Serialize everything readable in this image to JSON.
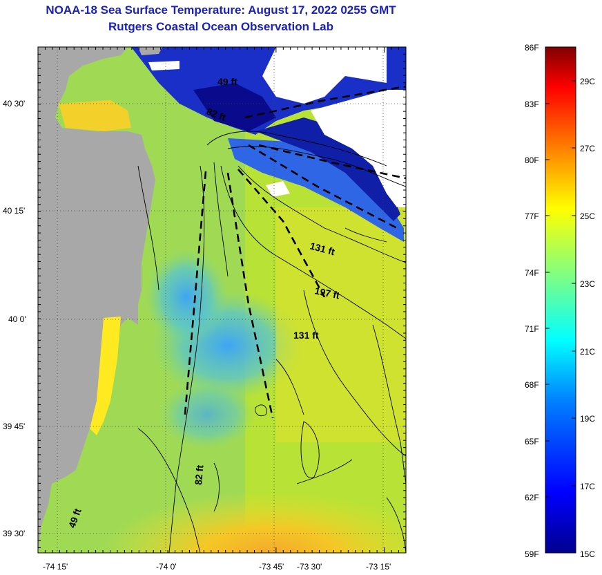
{
  "header": {
    "title": "NOAA-18 Sea Surface Temperature:  August 17, 2022 0255 GMT",
    "subtitle": "Rutgers Coastal Ocean Observation Lab"
  },
  "map": {
    "lat_labels": [
      "40 30'",
      "40 15'",
      "40 0'",
      "39 45'",
      "39 30'"
    ],
    "lon_labels": [
      "-74 15'",
      "-74 0'",
      "-73 45'",
      "-73 30'",
      "-73 15'"
    ],
    "depth_labels": [
      "49 ft",
      "82 ft",
      "131 ft",
      "197 ft",
      "131 ft",
      "82 ft",
      "49 ft"
    ]
  },
  "colorbar": {
    "fahrenheit_labels": [
      "86F",
      "83F",
      "80F",
      "77F",
      "74F",
      "71F",
      "68F",
      "65F",
      "62F",
      "59F"
    ],
    "celsius_labels": [
      "29C",
      "27C",
      "25C",
      "23C",
      "21C",
      "19C",
      "17C",
      "15C"
    ]
  },
  "colors": {
    "title": "#1a22b8",
    "land": "#a8a8a8",
    "cloud": "#ffffff",
    "cold": "#0a0a8c",
    "warm": "#e7d420"
  }
}
